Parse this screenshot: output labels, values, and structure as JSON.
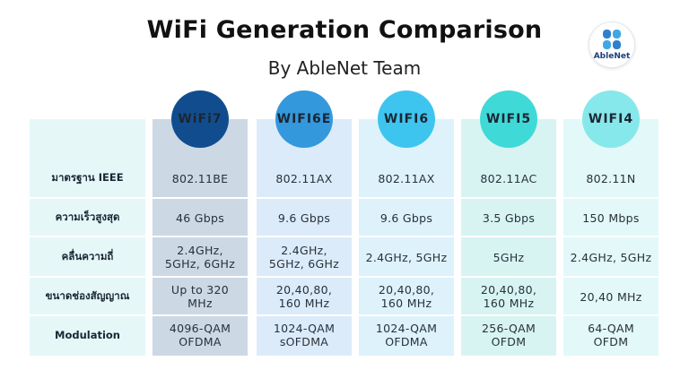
{
  "title": "WiFi Generation Comparison",
  "subtitle": "By AbleNet Team",
  "logo": {
    "text": "AbleNet",
    "icon": "ablenet-logo-icon"
  },
  "columns": [
    {
      "name": "WiFi7",
      "badge_color": "#114d8e",
      "fill": "#ccd8e4"
    },
    {
      "name": "WIFI6E",
      "badge_color": "#3498dc",
      "fill": "#dcebf9"
    },
    {
      "name": "WIFI6",
      "badge_color": "#3ec5ef",
      "fill": "#ddf2fb"
    },
    {
      "name": "WIFI5",
      "badge_color": "#3fdad7",
      "fill": "#d7f4f3"
    },
    {
      "name": "WIFI4",
      "badge_color": "#86e8ea",
      "fill": "#e2f8f9"
    }
  ],
  "rows": [
    {
      "label": "มาตรฐาน IEEE",
      "values": [
        "802.11BE",
        "802.11AX",
        "802.11AX",
        "802.11AC",
        "802.11N"
      ]
    },
    {
      "label": "ความเร็วสูงสุด",
      "values": [
        "46 Gbps",
        "9.6 Gbps",
        "9.6 Gbps",
        "3.5 Gbps",
        "150 Mbps"
      ]
    },
    {
      "label": "คลื่นความถี่",
      "values": [
        "2.4GHz,\n5GHz, 6GHz",
        "2.4GHz,\n5GHz, 6GHz",
        "2.4GHz, 5GHz",
        "5GHz",
        "2.4GHz, 5GHz"
      ]
    },
    {
      "label": "ขนาดช่องสัญญาณ",
      "values": [
        "Up to 320\nMHz",
        "20,40,80,\n160 MHz",
        "20,40,80,\n160 MHz",
        "20,40,80,\n160 MHz",
        "20,40 MHz"
      ]
    },
    {
      "label": "Modulation",
      "values": [
        "4096-QAM\nOFDMA",
        "1024-QAM\nsOFDMA",
        "1024-QAM\nOFDMA",
        "256-QAM\nOFDM",
        "64-QAM\nOFDM"
      ]
    }
  ]
}
